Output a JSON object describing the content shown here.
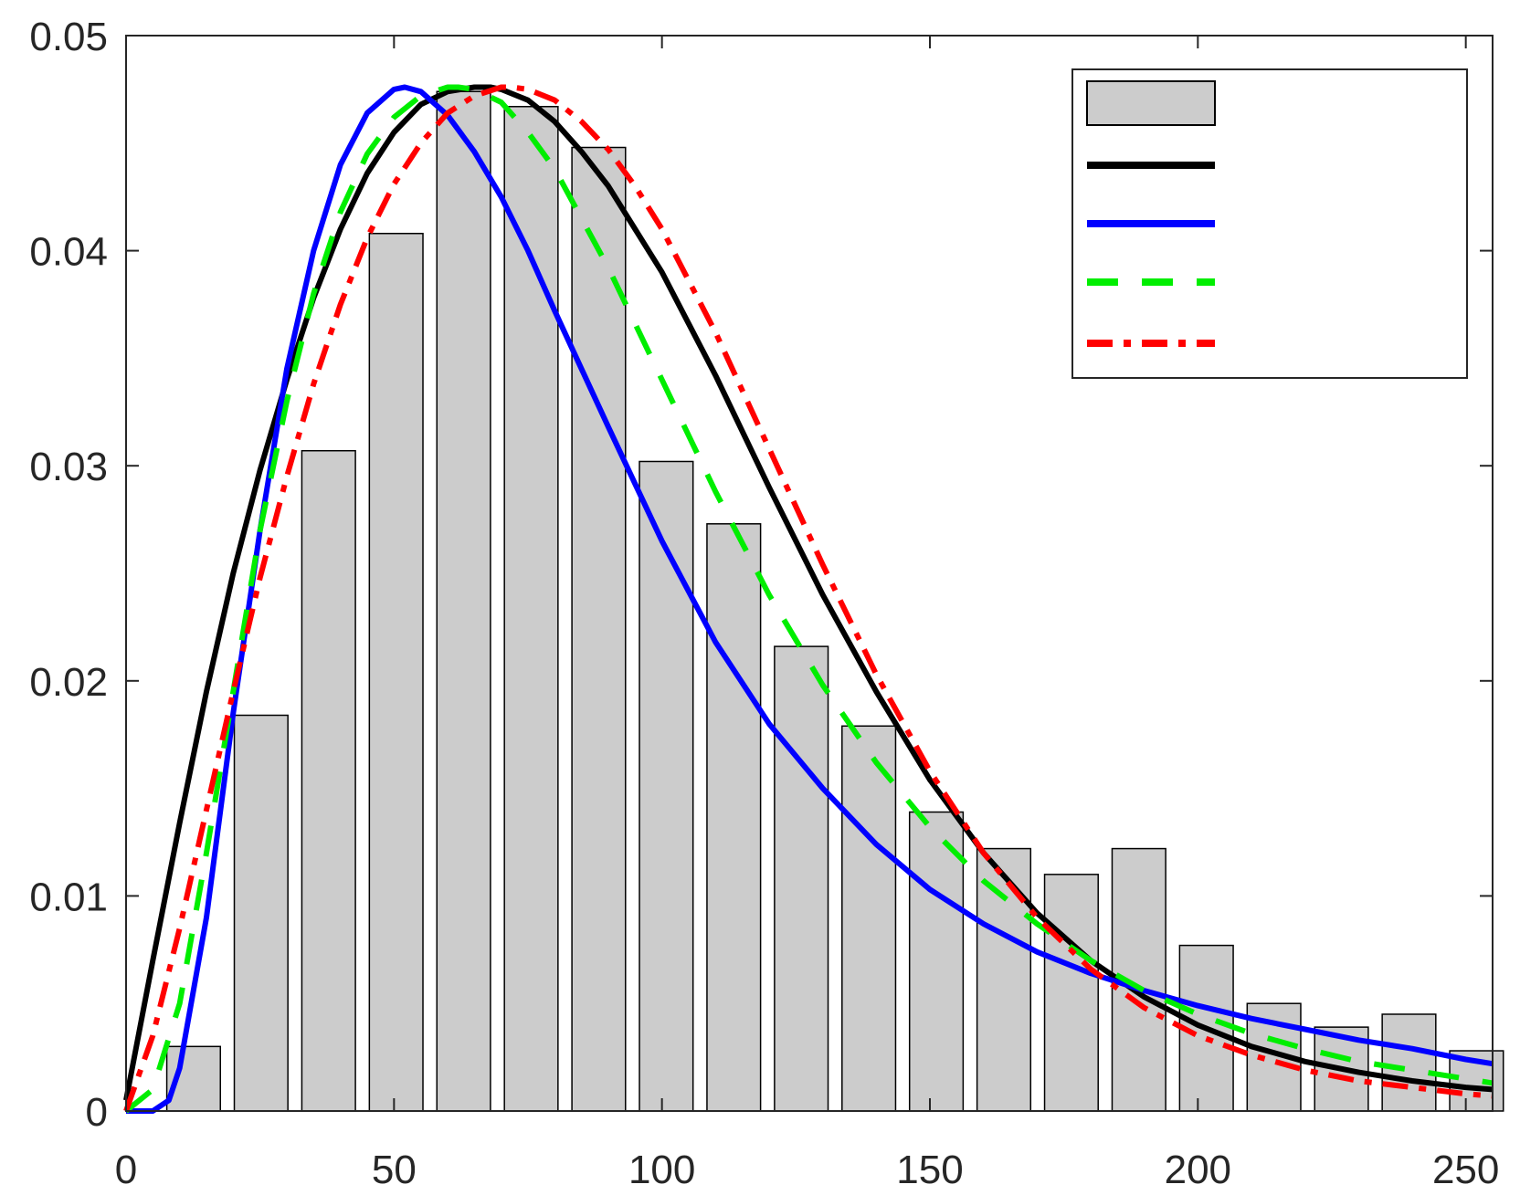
{
  "chart_data": {
    "type": "bar",
    "title": "",
    "xlabel": "",
    "ylabel": "",
    "xlim": [
      0,
      255
    ],
    "ylim": [
      0,
      0.05
    ],
    "grid": false,
    "legend_position": "top-right",
    "xticks": [
      0,
      50,
      100,
      150,
      200,
      250
    ],
    "xtick_labels": [
      "0",
      "50",
      "100",
      "150",
      "200",
      "250"
    ],
    "yticks": [
      0,
      0.01,
      0.02,
      0.03,
      0.04,
      0.05
    ],
    "ytick_labels": [
      "0",
      "0.01",
      "0.02",
      "0.03",
      "0.04",
      "0.05"
    ],
    "histogram": {
      "name": "",
      "color": "#cccccc",
      "bin_width": 12.6,
      "bar_width": 10,
      "centers": [
        12.6,
        25.2,
        37.8,
        50.4,
        63.0,
        75.6,
        88.2,
        100.8,
        113.4,
        126.0,
        138.6,
        151.2,
        163.8,
        176.4,
        189.0,
        201.6,
        214.2,
        226.8,
        239.4,
        252.0
      ],
      "values": [
        0.003,
        0.0184,
        0.0307,
        0.0408,
        0.0474,
        0.0467,
        0.0448,
        0.0302,
        0.0273,
        0.0216,
        0.0179,
        0.0139,
        0.0122,
        0.011,
        0.0122,
        0.0077,
        0.005,
        0.0039,
        0.0045,
        0.0028
      ]
    },
    "series": [
      {
        "name": "",
        "color": "#000000",
        "style": "solid",
        "x": [
          0,
          5,
          10,
          15,
          20,
          25,
          30,
          35,
          40,
          45,
          50,
          55,
          60,
          65,
          68,
          70,
          75,
          80,
          85,
          90,
          95,
          100,
          110,
          120,
          130,
          140,
          150,
          160,
          170,
          180,
          190,
          200,
          210,
          220,
          230,
          240,
          250,
          255
        ],
        "y": [
          0.0005,
          0.007,
          0.0134,
          0.0195,
          0.025,
          0.0298,
          0.034,
          0.0378,
          0.041,
          0.0436,
          0.0455,
          0.0468,
          0.0474,
          0.0476,
          0.0476,
          0.0475,
          0.047,
          0.046,
          0.0446,
          0.043,
          0.041,
          0.039,
          0.0342,
          0.029,
          0.024,
          0.0195,
          0.0154,
          0.012,
          0.0092,
          0.007,
          0.0053,
          0.004,
          0.003,
          0.0023,
          0.0018,
          0.0014,
          0.0011,
          0.001
        ]
      },
      {
        "name": "",
        "color": "#0000ff",
        "style": "solid",
        "x": [
          0,
          5,
          8,
          10,
          15,
          20,
          25,
          30,
          35,
          40,
          45,
          50,
          52,
          55,
          60,
          65,
          70,
          75,
          80,
          90,
          100,
          110,
          120,
          130,
          140,
          150,
          160,
          170,
          180,
          190,
          200,
          210,
          220,
          230,
          240,
          250,
          255
        ],
        "y": [
          0,
          0.0,
          0.0005,
          0.002,
          0.009,
          0.0185,
          0.027,
          0.0345,
          0.04,
          0.044,
          0.0464,
          0.0475,
          0.0476,
          0.0474,
          0.0463,
          0.0446,
          0.0425,
          0.04,
          0.0372,
          0.0318,
          0.0265,
          0.0218,
          0.018,
          0.015,
          0.0124,
          0.0103,
          0.0087,
          0.0074,
          0.0064,
          0.0056,
          0.0049,
          0.0043,
          0.0038,
          0.0033,
          0.0029,
          0.0024,
          0.0022
        ]
      },
      {
        "name": "",
        "color": "#00ee00",
        "style": "dashed",
        "x": [
          0,
          5,
          10,
          15,
          20,
          25,
          30,
          35,
          40,
          45,
          50,
          55,
          60,
          62,
          65,
          70,
          75,
          80,
          90,
          100,
          110,
          120,
          130,
          140,
          150,
          160,
          170,
          180,
          190,
          200,
          210,
          220,
          230,
          240,
          250,
          255
        ],
        "y": [
          0,
          0.001,
          0.005,
          0.012,
          0.0195,
          0.027,
          0.033,
          0.038,
          0.0418,
          0.0445,
          0.0462,
          0.0472,
          0.0476,
          0.0476,
          0.0475,
          0.0469,
          0.0455,
          0.0438,
          0.0392,
          0.034,
          0.0288,
          0.024,
          0.0198,
          0.0162,
          0.0132,
          0.0107,
          0.0087,
          0.007,
          0.0056,
          0.0045,
          0.0036,
          0.0029,
          0.0023,
          0.0019,
          0.0015,
          0.0013
        ]
      },
      {
        "name": "",
        "color": "#ff0000",
        "style": "dashdot",
        "x": [
          0,
          5,
          10,
          15,
          20,
          25,
          30,
          35,
          40,
          45,
          50,
          55,
          60,
          65,
          70,
          72,
          75,
          80,
          85,
          90,
          95,
          100,
          110,
          120,
          130,
          140,
          150,
          160,
          170,
          180,
          190,
          200,
          210,
          220,
          230,
          240,
          250,
          255
        ],
        "y": [
          0,
          0.0035,
          0.0085,
          0.014,
          0.0195,
          0.0248,
          0.0295,
          0.0338,
          0.0375,
          0.0406,
          0.0431,
          0.045,
          0.0464,
          0.0472,
          0.0476,
          0.0476,
          0.0475,
          0.047,
          0.046,
          0.0447,
          0.043,
          0.041,
          0.0362,
          0.0308,
          0.0254,
          0.0203,
          0.0158,
          0.012,
          0.009,
          0.0066,
          0.0048,
          0.0035,
          0.0026,
          0.0019,
          0.0014,
          0.0011,
          0.0008,
          0.0007
        ]
      }
    ]
  }
}
